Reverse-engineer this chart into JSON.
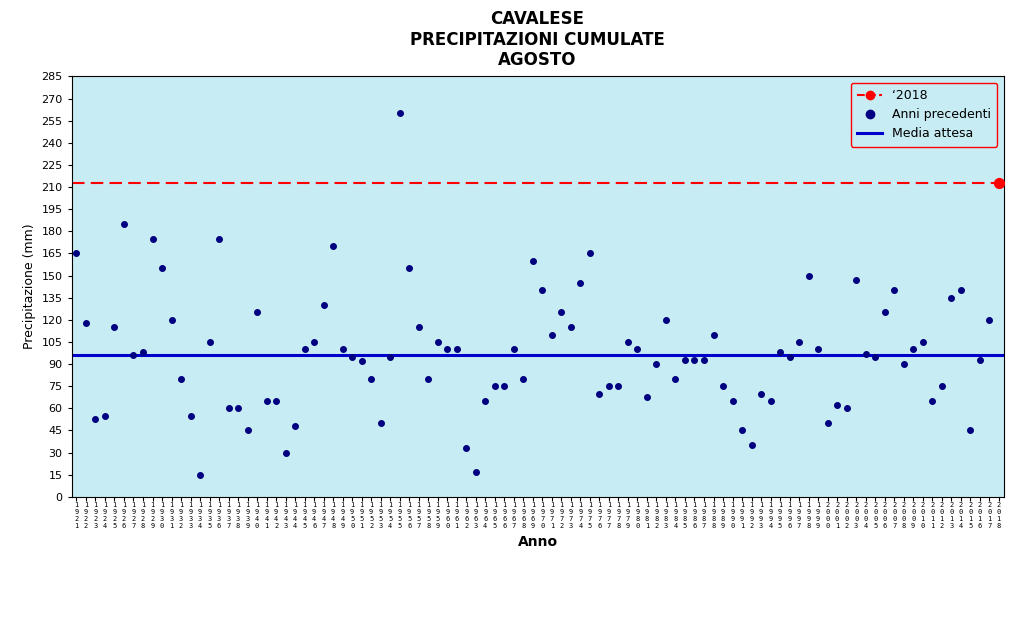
{
  "title_line1": "CAVALESE",
  "title_line2": "PRECIPITAZIONI CUMULATE",
  "title_line3": "AGOSTO",
  "xlabel": "Anno",
  "ylabel": "Precipitazione (mm)",
  "background_color": "#c8ecf4",
  "outer_background": "#ffffff",
  "media_attesa": 96,
  "value_2018": 213,
  "ylim": [
    0,
    285
  ],
  "yticks": [
    0,
    15,
    30,
    45,
    60,
    75,
    90,
    105,
    120,
    135,
    150,
    165,
    180,
    195,
    210,
    225,
    240,
    255,
    270,
    285
  ],
  "dot_color": "#000080",
  "line_2018_color": "#ff0000",
  "media_color": "#0000cd",
  "years": [
    1921,
    1922,
    1923,
    1924,
    1925,
    1926,
    1927,
    1928,
    1929,
    1930,
    1931,
    1932,
    1933,
    1934,
    1935,
    1936,
    1937,
    1938,
    1939,
    1940,
    1941,
    1942,
    1943,
    1944,
    1945,
    1946,
    1947,
    1948,
    1949,
    1950,
    1951,
    1952,
    1953,
    1954,
    1955,
    1956,
    1957,
    1958,
    1959,
    1960,
    1961,
    1962,
    1963,
    1964,
    1965,
    1966,
    1967,
    1968,
    1969,
    1970,
    1971,
    1972,
    1973,
    1974,
    1975,
    1976,
    1977,
    1978,
    1979,
    1980,
    1981,
    1982,
    1983,
    1984,
    1985,
    1986,
    1987,
    1988,
    1989,
    1990,
    1991,
    1992,
    1993,
    1994,
    1995,
    1996,
    1997,
    1998,
    1999,
    2000,
    2001,
    2002,
    2003,
    2004,
    2005,
    2006,
    2007,
    2008,
    2009,
    2010,
    2011,
    2012,
    2013,
    2014,
    2015,
    2016,
    2017
  ],
  "precip": [
    165,
    118,
    53,
    55,
    115,
    185,
    96,
    98,
    175,
    155,
    120,
    80,
    55,
    15,
    105,
    175,
    60,
    60,
    45,
    125,
    65,
    65,
    30,
    48,
    100,
    105,
    130,
    170,
    100,
    95,
    92,
    80,
    50,
    95,
    260,
    155,
    115,
    80,
    105,
    100,
    100,
    33,
    17,
    65,
    75,
    75,
    100,
    80,
    160,
    140,
    110,
    125,
    115,
    145,
    165,
    70,
    75,
    75,
    105,
    100,
    68,
    90,
    120,
    80,
    93,
    93,
    93,
    110,
    75,
    65,
    45,
    35,
    70,
    65,
    98,
    95,
    105,
    150,
    100,
    50,
    62,
    60,
    147,
    97,
    95,
    125,
    140,
    90,
    100,
    105,
    65,
    75,
    135,
    140,
    45,
    93,
    120
  ]
}
